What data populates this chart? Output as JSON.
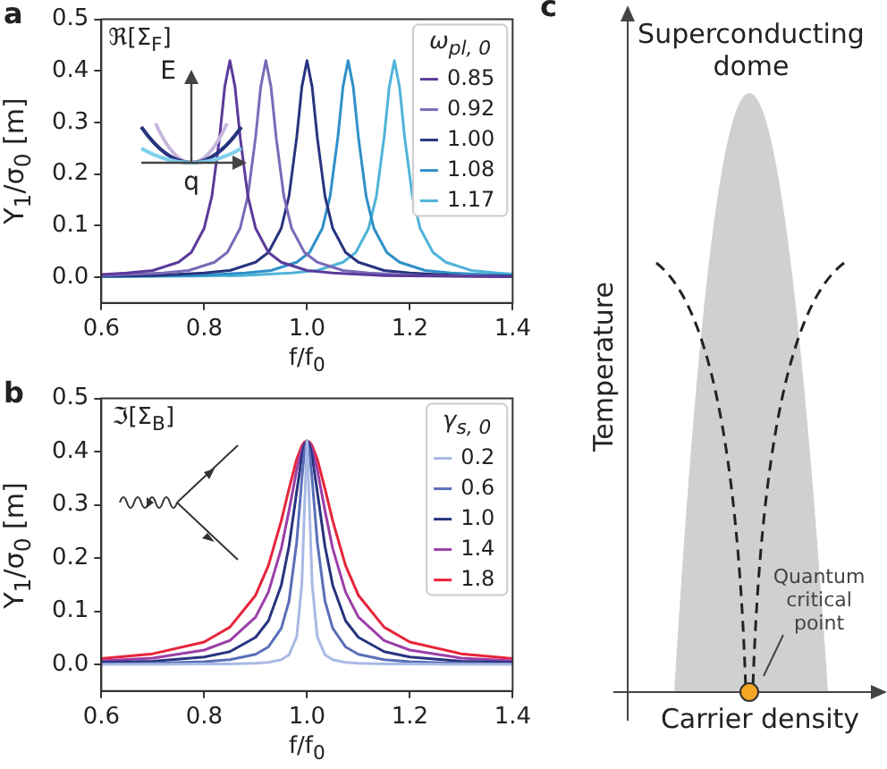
{
  "chart_data": [
    {
      "type": "line",
      "title": "a",
      "xlabel": "f/f$_{0}$",
      "ylabel": "Y$_{1}$/σ$_{0}$ [m]",
      "legend_title": "ω$_{pl, 0}$",
      "annotations": [
        "ℜ[Σ$_{F}$]",
        "E",
        "q"
      ],
      "xlim": [
        0.6,
        1.4
      ],
      "ylim": [
        -0.05,
        0.5
      ],
      "xticks": [
        0.6,
        0.8,
        {
          "value": 1,
          "label": "1.0"
        },
        1.2,
        1.4
      ],
      "yticks": [
        {
          "value": 0,
          "label": "0.0"
        },
        0.1,
        0.2,
        0.3,
        0.4,
        0.5
      ],
      "grid": false,
      "legend": "top right",
      "series": [
        {
          "name": "0.85",
          "color": "#5b3a9a",
          "x": [
            0.6,
            0.65,
            0.7,
            0.75,
            0.775,
            0.8,
            0.815,
            0.83,
            0.84,
            0.85,
            0.86,
            0.87,
            0.885,
            0.9,
            0.925,
            0.95,
            1.0,
            1.05,
            1.15,
            1.25,
            1.4
          ],
          "values": [
            0.005,
            0.008,
            0.013,
            0.029,
            0.048,
            0.095,
            0.157,
            0.271,
            0.369,
            0.42,
            0.369,
            0.271,
            0.157,
            0.095,
            0.048,
            0.029,
            0.013,
            0.008,
            0.003,
            0.002,
            0.001
          ]
        },
        {
          "name": "0.92",
          "color": "#7a6ab8",
          "x": [
            0.6,
            0.72,
            0.77,
            0.82,
            0.845,
            0.87,
            0.885,
            0.9,
            0.91,
            0.92,
            0.93,
            0.94,
            0.955,
            0.97,
            0.995,
            1.02,
            1.07,
            1.12,
            1.22,
            1.32,
            1.4
          ],
          "values": [
            0.003,
            0.008,
            0.013,
            0.029,
            0.048,
            0.095,
            0.157,
            0.271,
            0.369,
            0.42,
            0.369,
            0.271,
            0.157,
            0.095,
            0.048,
            0.029,
            0.013,
            0.008,
            0.003,
            0.002,
            0.001
          ]
        },
        {
          "name": "1.00",
          "color": "#28347f",
          "x": [
            0.6,
            0.7,
            0.8,
            0.85,
            0.9,
            0.925,
            0.95,
            0.965,
            0.98,
            0.99,
            1.0,
            1.01,
            1.02,
            1.035,
            1.05,
            1.075,
            1.1,
            1.15,
            1.2,
            1.3,
            1.4
          ],
          "values": [
            0.002,
            0.003,
            0.008,
            0.013,
            0.029,
            0.048,
            0.095,
            0.157,
            0.271,
            0.369,
            0.42,
            0.369,
            0.271,
            0.157,
            0.095,
            0.048,
            0.029,
            0.013,
            0.008,
            0.003,
            0.002
          ]
        },
        {
          "name": "1.08",
          "color": "#2f8fc8",
          "x": [
            0.6,
            0.68,
            0.78,
            0.88,
            0.93,
            0.98,
            1.005,
            1.03,
            1.045,
            1.06,
            1.07,
            1.08,
            1.09,
            1.1,
            1.115,
            1.13,
            1.155,
            1.18,
            1.23,
            1.28,
            1.4
          ],
          "values": [
            0.001,
            0.002,
            0.003,
            0.008,
            0.013,
            0.029,
            0.048,
            0.095,
            0.157,
            0.271,
            0.369,
            0.42,
            0.369,
            0.271,
            0.157,
            0.095,
            0.048,
            0.029,
            0.013,
            0.008,
            0.003
          ]
        },
        {
          "name": "1.17",
          "color": "#4fb3d9",
          "x": [
            0.6,
            0.77,
            0.87,
            0.97,
            1.02,
            1.07,
            1.095,
            1.12,
            1.135,
            1.15,
            1.16,
            1.17,
            1.18,
            1.19,
            1.205,
            1.22,
            1.245,
            1.27,
            1.32,
            1.37,
            1.4
          ],
          "values": [
            0.001,
            0.002,
            0.003,
            0.008,
            0.013,
            0.029,
            0.048,
            0.095,
            0.157,
            0.271,
            0.369,
            0.42,
            0.369,
            0.271,
            0.157,
            0.095,
            0.048,
            0.029,
            0.013,
            0.008,
            0.006
          ]
        }
      ]
    },
    {
      "type": "line",
      "title": "b",
      "xlabel": "f/f$_{0}$",
      "ylabel": "Y$_{1}$/σ$_{0}$ [m]",
      "legend_title": "γ$_{s, 0}$",
      "annotations": [
        "ℑ[Σ$_{B}$]"
      ],
      "xlim": [
        0.6,
        1.4
      ],
      "ylim": [
        -0.05,
        0.5
      ],
      "xticks": [
        0.6,
        0.8,
        {
          "value": 1,
          "label": "1.0"
        },
        1.2,
        1.4
      ],
      "yticks": [
        {
          "value": 0,
          "label": "0.0"
        },
        0.1,
        0.2,
        0.3,
        0.4,
        0.5
      ],
      "grid": false,
      "legend": "top right",
      "x": [
        0.6,
        0.7,
        0.8,
        0.85,
        0.9,
        0.925,
        0.95,
        0.965,
        0.98,
        0.99,
        0.995,
        1.0,
        1.005,
        1.01,
        1.02,
        1.035,
        1.05,
        1.075,
        1.1,
        1.15,
        1.2,
        1.3,
        1.4
      ],
      "series": [
        {
          "name": "0.2",
          "color": "#a9b9e6",
          "values": [
            0,
            0,
            0.001,
            0.001,
            0.002,
            0.004,
            0.009,
            0.018,
            0.052,
            0.151,
            0.291,
            0.42,
            0.291,
            0.151,
            0.052,
            0.018,
            0.009,
            0.004,
            0.002,
            0.001,
            0.001,
            0,
            0
          ]
        },
        {
          "name": "0.6",
          "color": "#5a6fb8",
          "values": [
            0.001,
            0.002,
            0.005,
            0.009,
            0.019,
            0.033,
            0.068,
            0.119,
            0.23,
            0.348,
            0.399,
            0.42,
            0.399,
            0.348,
            0.23,
            0.119,
            0.068,
            0.033,
            0.019,
            0.009,
            0.005,
            0.002,
            0.001
          ]
        },
        {
          "name": "1.0",
          "color": "#28347f",
          "values": [
            0.004,
            0.006,
            0.014,
            0.024,
            0.051,
            0.082,
            0.149,
            0.222,
            0.325,
            0.391,
            0.413,
            0.42,
            0.413,
            0.391,
            0.325,
            0.222,
            0.149,
            0.082,
            0.051,
            0.024,
            0.014,
            0.006,
            0.004
          ]
        },
        {
          "name": "1.4",
          "color": "#9b3fa8",
          "values": [
            0.007,
            0.012,
            0.027,
            0.045,
            0.089,
            0.136,
            0.218,
            0.289,
            0.366,
            0.405,
            0.416,
            0.42,
            0.416,
            0.405,
            0.366,
            0.289,
            0.218,
            0.136,
            0.089,
            0.045,
            0.027,
            0.012,
            0.007
          ]
        },
        {
          "name": "1.8",
          "color": "#e8243a",
          "values": [
            0.011,
            0.02,
            0.042,
            0.07,
            0.13,
            0.186,
            0.27,
            0.33,
            0.386,
            0.411,
            0.418,
            0.42,
            0.418,
            0.411,
            0.386,
            0.33,
            0.27,
            0.186,
            0.13,
            0.07,
            0.042,
            0.02,
            0.011
          ]
        }
      ]
    },
    {
      "type": "other",
      "title": "c",
      "xlabel": "Carrier density",
      "ylabel": "Temperature",
      "annotations": [
        "Superconducting dome",
        "Quantum critical point"
      ]
    }
  ]
}
